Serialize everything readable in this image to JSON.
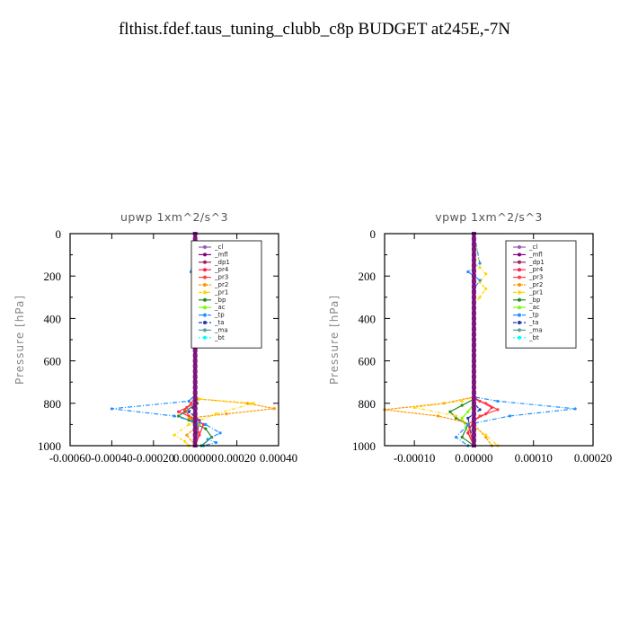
{
  "page_title": "flthist.fdef.taus_tuning_clubb_c8p  BUDGET at245E,-7N",
  "colors": {
    "_cl": "#9b59b6",
    "_mfl": "#800080",
    "_dp1": "#a0206c",
    "_pr4": "#ff2050",
    "_pr3": "#ff4040",
    "_pr2": "#ff9900",
    "_pr1": "#ffd700",
    "_bp": "#228b22",
    "_ac": "#7cfc00",
    "_tp": "#1e90ff",
    "_ta": "#1f3ab0",
    "_ma": "#5f9ea0",
    "_bt": "#00ffff"
  },
  "chart_data": [
    {
      "type": "line",
      "title": "upwp   1xm^2/s^3",
      "ylabel": "Pressure [hPa]",
      "xlim": [
        -0.0006,
        0.0004
      ],
      "ylim": [
        1000,
        0
      ],
      "xticks": [
        -0.0006,
        -0.0004,
        -0.0002,
        0.0,
        0.0002,
        0.0004
      ],
      "xtick_labels": [
        "-0.00060",
        "-0.00040",
        "-0.00020",
        "0.000000",
        "0.00020",
        "0.00040"
      ],
      "yticks": [
        0,
        200,
        400,
        600,
        800,
        1000
      ],
      "ytick_labels": [
        "0",
        "200",
        "400",
        "600",
        "800",
        "1000"
      ],
      "legend": [
        "_cl",
        "_mfl",
        "_dp1",
        "_pr4",
        "_pr3",
        "_pr2",
        "_pr1",
        "_bp",
        "_ac",
        "_tp",
        "_ta",
        "_ma",
        "_bt"
      ],
      "legend_position": "top-right",
      "series": [
        {
          "name": "_cl",
          "x": [
            0,
            0,
            0,
            0,
            0,
            0
          ],
          "y": [
            0,
            200,
            400,
            600,
            800,
            1000
          ]
        },
        {
          "name": "_mfl",
          "x": [
            0,
            0,
            0,
            0,
            0,
            0
          ],
          "y": [
            0,
            200,
            400,
            600,
            800,
            1000
          ]
        },
        {
          "name": "_dp1",
          "x": [
            0,
            0,
            0,
            0,
            0,
            0
          ],
          "y": [
            0,
            200,
            400,
            600,
            800,
            1000
          ]
        },
        {
          "name": "_pr4",
          "x": [
            0,
            0,
            1e-05,
            0,
            -4e-05,
            -8e-05,
            -3e-05,
            1e-05,
            4e-05,
            2e-05,
            0
          ],
          "y": [
            0,
            750,
            780,
            800,
            820,
            840,
            860,
            880,
            900,
            950,
            1000
          ]
        },
        {
          "name": "_pr3",
          "x": [
            0,
            0,
            -2e-05,
            -5e-05,
            -3e-05,
            0,
            2e-05,
            0
          ],
          "y": [
            0,
            770,
            800,
            830,
            860,
            890,
            940,
            1000
          ]
        },
        {
          "name": "_pr2",
          "x": [
            0,
            0,
            2e-05,
            0.00025,
            0.00038,
            0.00015,
            -3e-05,
            2e-05,
            -4e-05,
            0
          ],
          "y": [
            0,
            770,
            780,
            800,
            825,
            850,
            870,
            900,
            950,
            1000
          ]
        },
        {
          "name": "_pr1",
          "x": [
            0,
            -2e-05,
            2e-05,
            -1e-05,
            0,
            0,
            2e-05,
            0.00028,
            0.0001,
            -3e-05,
            -0.0001,
            -5e-05,
            -3e-05
          ],
          "y": [
            0,
            180,
            200,
            220,
            240,
            770,
            780,
            800,
            850,
            900,
            950,
            980,
            1000
          ]
        },
        {
          "name": "_bp",
          "x": [
            0,
            0,
            1e-05,
            -5e-05,
            -8e-05,
            -3e-05,
            5e-05,
            8e-05,
            3e-05
          ],
          "y": [
            0,
            770,
            800,
            840,
            860,
            880,
            920,
            960,
            1000
          ]
        },
        {
          "name": "_ac",
          "x": [
            0,
            0,
            0,
            -2e-05,
            0,
            0
          ],
          "y": [
            0,
            800,
            840,
            870,
            900,
            1000
          ]
        },
        {
          "name": "_tp",
          "x": [
            0,
            -2e-05,
            2e-05,
            0,
            0,
            -3e-05,
            -0.0004,
            -0.0001,
            5e-05,
            0.00012,
            6e-05,
            0.0001,
            4e-05
          ],
          "y": [
            0,
            180,
            200,
            230,
            760,
            790,
            826,
            860,
            900,
            940,
            970,
            985,
            1000
          ]
        },
        {
          "name": "_ta",
          "x": [
            0,
            0,
            -1e-05,
            -3e-05,
            2e-05,
            0
          ],
          "y": [
            0,
            800,
            820,
            840,
            880,
            1000
          ]
        },
        {
          "name": "_ma",
          "x": [
            0,
            0,
            0,
            0
          ],
          "y": [
            0,
            500,
            800,
            1000
          ]
        },
        {
          "name": "_bt",
          "x": [
            0,
            0,
            0,
            1e-05,
            0
          ],
          "y": [
            0,
            500,
            800,
            900,
            1000
          ]
        }
      ]
    },
    {
      "type": "line",
      "title": "vpwp   1xm^2/s^3",
      "ylabel": "Pressure [hPa]",
      "xlim": [
        -0.00015,
        0.0002
      ],
      "ylim": [
        1000,
        0
      ],
      "xticks": [
        -0.0001,
        0.0,
        0.0001,
        0.0002
      ],
      "xtick_labels": [
        "-0.00010",
        "0.00000",
        "0.00010",
        "0.00020"
      ],
      "yticks": [
        0,
        200,
        400,
        600,
        800,
        1000
      ],
      "ytick_labels": [
        "0",
        "200",
        "400",
        "600",
        "800",
        "1000"
      ],
      "legend": [
        "_cl",
        "_mfl",
        "_dp1",
        "_pr4",
        "_pr3",
        "_pr2",
        "_pr1",
        "_bp",
        "_ac",
        "_tp",
        "_ta",
        "_ma",
        "_bt"
      ],
      "legend_position": "top-right",
      "series": [
        {
          "name": "_cl",
          "x": [
            0,
            0,
            0,
            0,
            0,
            0
          ],
          "y": [
            0,
            200,
            400,
            600,
            800,
            1000
          ]
        },
        {
          "name": "_mfl",
          "x": [
            0,
            0,
            0,
            0,
            0,
            0
          ],
          "y": [
            0,
            200,
            400,
            600,
            800,
            1000
          ]
        },
        {
          "name": "_dp1",
          "x": [
            0,
            0,
            0,
            0,
            0,
            0
          ],
          "y": [
            0,
            200,
            400,
            600,
            800,
            1000
          ]
        },
        {
          "name": "_pr4",
          "x": [
            0,
            0,
            1e-05,
            3e-05,
            2e-05,
            0,
            -1e-05,
            0
          ],
          "y": [
            0,
            770,
            790,
            820,
            850,
            880,
            940,
            1000
          ]
        },
        {
          "name": "_pr3",
          "x": [
            0,
            0,
            2e-05,
            4e-05,
            1e-05,
            -1e-05,
            0
          ],
          "y": [
            0,
            780,
            800,
            830,
            860,
            900,
            1000
          ]
        },
        {
          "name": "_pr2",
          "x": [
            0,
            0,
            -5e-05,
            -0.00015,
            -6e-05,
            0,
            2e-05,
            3e-05
          ],
          "y": [
            0,
            770,
            800,
            830,
            860,
            900,
            960,
            1000
          ]
        },
        {
          "name": "_pr1",
          "x": [
            0,
            1e-05,
            2e-05,
            1e-05,
            2e-05,
            1e-05,
            0,
            0,
            -2e-05,
            -0.0001,
            -3e-05,
            2e-05,
            4e-05
          ],
          "y": [
            0,
            160,
            190,
            230,
            260,
            300,
            330,
            770,
            790,
            820,
            860,
            950,
            1000
          ]
        },
        {
          "name": "_bp",
          "x": [
            0,
            0,
            -2e-05,
            -4e-05,
            -3e-05,
            -1e-05,
            -2e-05,
            0
          ],
          "y": [
            0,
            780,
            810,
            840,
            870,
            900,
            960,
            1000
          ]
        },
        {
          "name": "_ac",
          "x": [
            0,
            0,
            -1e-05,
            -2e-05,
            0
          ],
          "y": [
            0,
            800,
            840,
            870,
            1000
          ]
        },
        {
          "name": "_tp",
          "x": [
            0,
            1e-05,
            -1e-05,
            1e-05,
            0,
            0,
            4e-05,
            0.00017,
            6e-05,
            -1e-05,
            -3e-05,
            -1e-05
          ],
          "y": [
            0,
            140,
            180,
            220,
            260,
            770,
            790,
            826,
            860,
            900,
            960,
            1000
          ]
        },
        {
          "name": "_ta",
          "x": [
            0,
            0,
            1e-05,
            -1e-05,
            0
          ],
          "y": [
            0,
            800,
            830,
            870,
            1000
          ]
        },
        {
          "name": "_ma",
          "x": [
            0,
            0,
            0,
            0
          ],
          "y": [
            0,
            500,
            800,
            1000
          ]
        },
        {
          "name": "_bt",
          "x": [
            0,
            0,
            0,
            0
          ],
          "y": [
            0,
            500,
            800,
            1000
          ]
        }
      ]
    }
  ]
}
